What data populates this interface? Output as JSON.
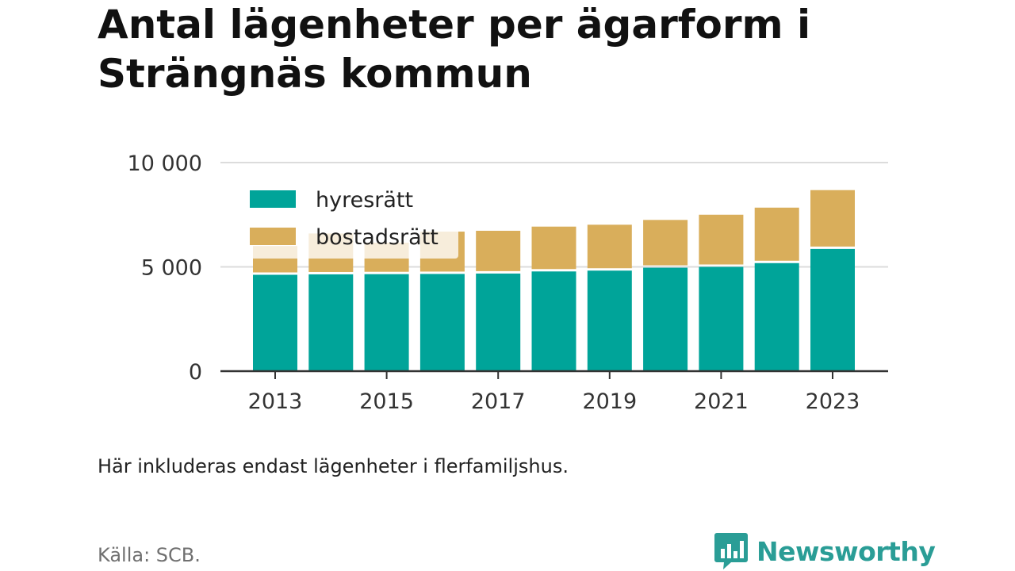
{
  "title": "Antal lägenheter per ägarform i Strängnäs kommun",
  "note": "Här inkluderas endast lägenheter i flerfamiljshus.",
  "source": "Källa: SCB.",
  "brand": {
    "name": "Newsworthy",
    "color": "#2a9d96"
  },
  "chart_data": {
    "type": "bar",
    "stacked": true,
    "categories": [
      "2013",
      "2014",
      "2015",
      "2016",
      "2017",
      "2018",
      "2019",
      "2020",
      "2021",
      "2022",
      "2023"
    ],
    "x_tick_labels": [
      "2013",
      "2015",
      "2017",
      "2019",
      "2021",
      "2023"
    ],
    "y_ticks": [
      {
        "value": 0,
        "label": "0"
      },
      {
        "value": 5000,
        "label": "5 000"
      },
      {
        "value": 10000,
        "label": "10 000"
      }
    ],
    "ylim": [
      0,
      10000
    ],
    "grid": true,
    "legend_position": "top-left",
    "series": [
      {
        "name": "hyresrätt",
        "color": "#00a499",
        "values": [
          4620,
          4640,
          4650,
          4660,
          4680,
          4780,
          4820,
          4960,
          5000,
          5180,
          5860
        ]
      },
      {
        "name": "bostadsrätt",
        "color": "#d9ae5b",
        "values": [
          1380,
          1960,
          1510,
          2030,
          2050,
          2150,
          2200,
          2290,
          2500,
          2660,
          2820
        ]
      }
    ]
  }
}
